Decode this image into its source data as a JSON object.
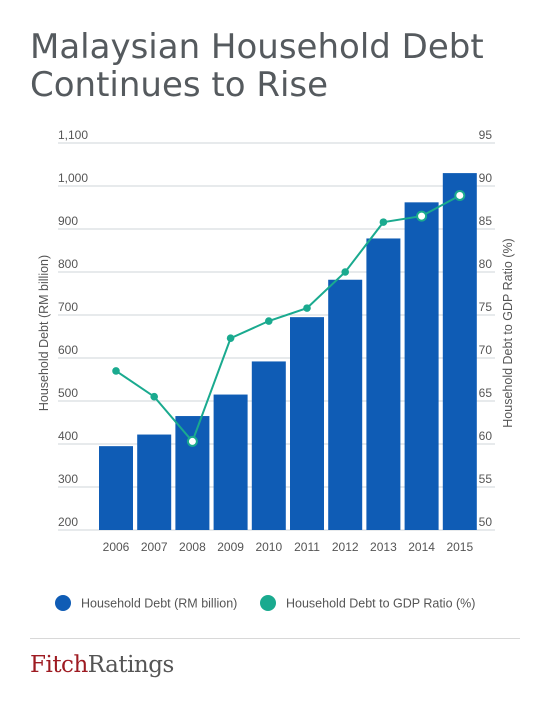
{
  "title_line1": "Malaysian Household Debt",
  "title_line2": "Continues to Rise",
  "logo": {
    "part1": "Fitch",
    "part2": "Ratings"
  },
  "colors": {
    "bar": "#0f5cb5",
    "line": "#1aaa8f",
    "grid": "#cfd4d8",
    "axis_text": "#555555"
  },
  "chart_data": {
    "type": "bar+line",
    "categories": [
      "2006",
      "2007",
      "2008",
      "2009",
      "2010",
      "2011",
      "2012",
      "2013",
      "2014",
      "2015"
    ],
    "series": [
      {
        "name": "Household Debt (RM billion)",
        "type": "bar",
        "axis": "left",
        "values": [
          395,
          422,
          465,
          515,
          592,
          695,
          782,
          878,
          962,
          1030
        ]
      },
      {
        "name": "Household Debt to GDP Ratio (%)",
        "type": "line",
        "axis": "right",
        "values": [
          68.5,
          65.5,
          60.3,
          72.3,
          74.3,
          75.8,
          80.0,
          85.8,
          86.5,
          88.9
        ]
      }
    ],
    "ylabel": "Household Debt (RM billion)",
    "y2label": "Household Debt to GDP Ratio (%)",
    "ylim": [
      200,
      1100
    ],
    "y2lim": [
      50,
      95
    ],
    "yticks": [
      "1,100",
      "1,000",
      "900",
      "800",
      "700",
      "600",
      "500",
      "400",
      "300",
      "200"
    ],
    "y2ticks": [
      "95",
      "90",
      "85",
      "80",
      "75",
      "70",
      "65",
      "60",
      "55",
      "50"
    ],
    "grid": true,
    "legend_position": "bottom"
  }
}
